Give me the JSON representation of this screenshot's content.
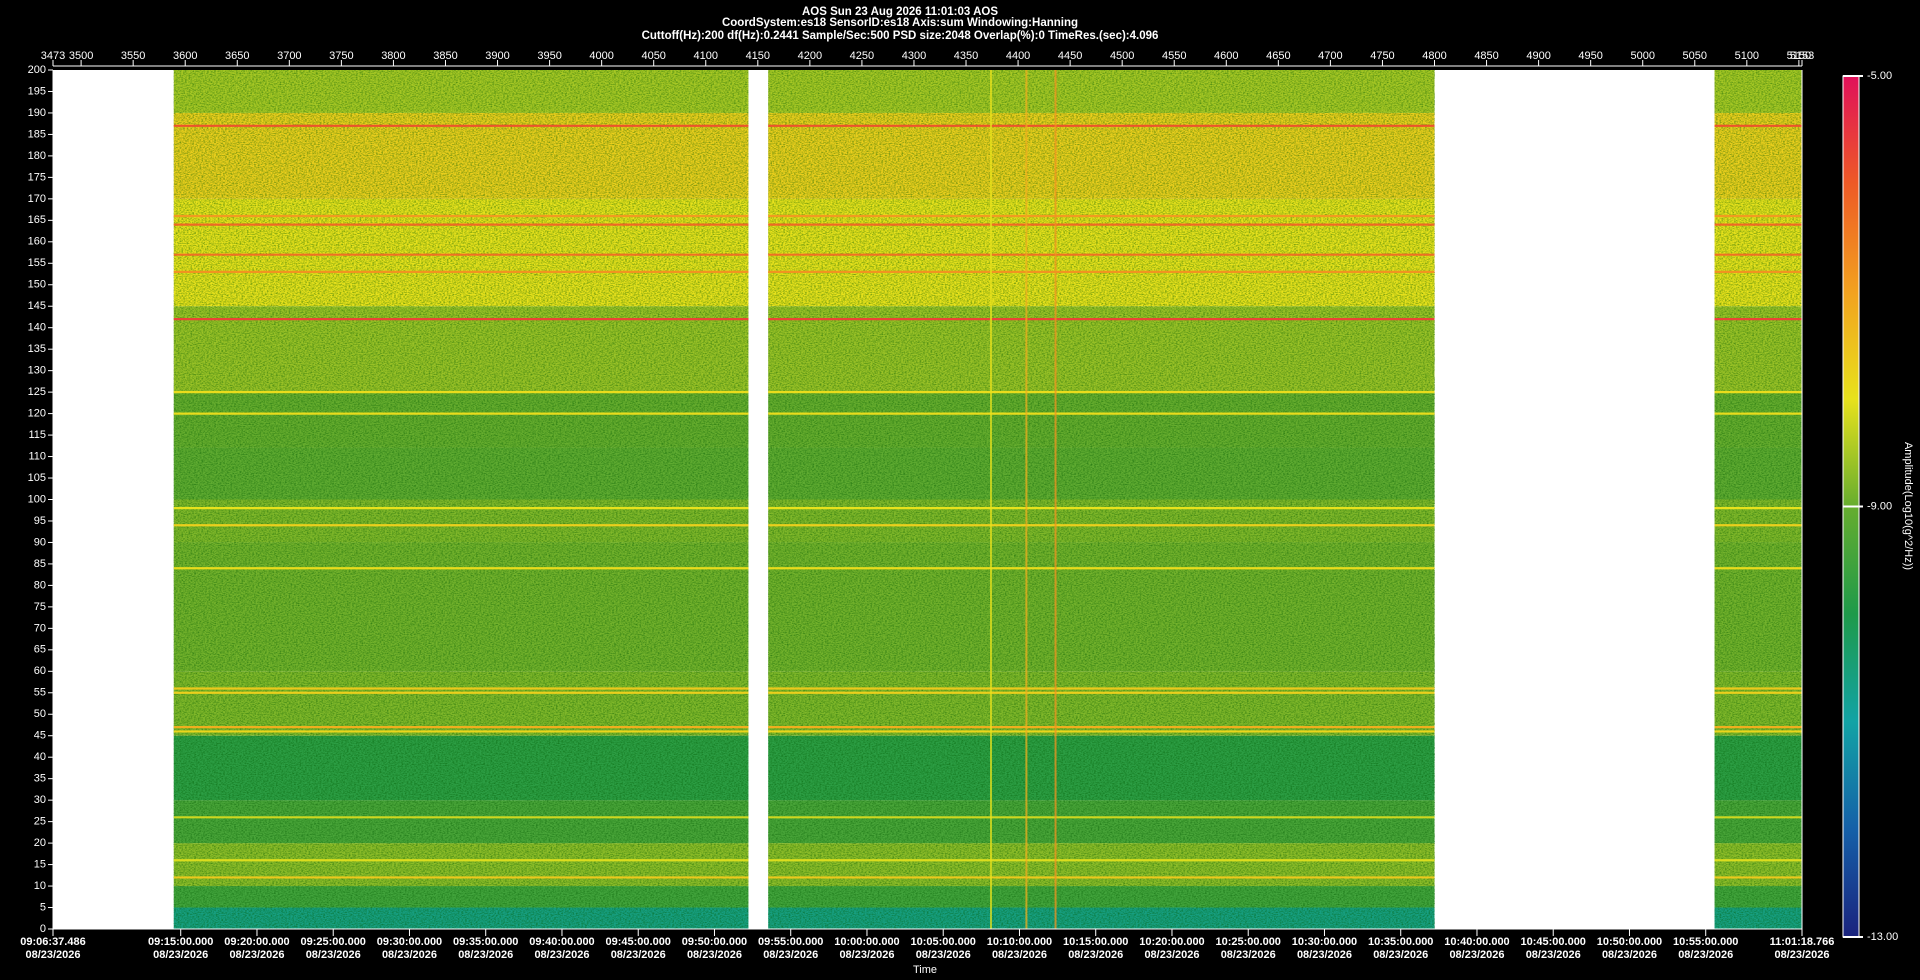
{
  "chart_data": {
    "type": "spectrogram",
    "title": "AOS  Sun 23 Aug 2026 11:01:03  AOS",
    "subtitle": [
      "CoordSystem:es18    SensorID:es18    Axis:sum    Windowing:Hanning",
      "Cuttoff(Hz):200      df(Hz):0.2441      Sample/Sec:500      PSD size:2048      Overlap(%):0      TimeRes.(sec):4.096"
    ],
    "xlabel": "Time",
    "colorbar_label": "Amplitude(Log10(g^2/Hz))",
    "xlim": [
      3473,
      5153
    ],
    "xticks": [
      3473,
      3500,
      3550,
      3600,
      3650,
      3700,
      3750,
      3800,
      3850,
      3900,
      3950,
      4000,
      4050,
      4100,
      4150,
      4200,
      4250,
      4300,
      4350,
      4400,
      4450,
      4500,
      4550,
      4600,
      4650,
      4700,
      4750,
      4800,
      4850,
      4900,
      4950,
      5000,
      5050,
      5100,
      5150,
      5153
    ],
    "time_ticks": [
      {
        "value": 3473,
        "label": "09:06:37.486\n08/23/2026"
      },
      {
        "value": 3595.68,
        "label": "09:15:00.000\n08/23/2026"
      },
      {
        "value": 3668.93,
        "label": "09:20:00.000\n08/23/2026"
      },
      {
        "value": 3742.17,
        "label": "09:25:00.000\n08/23/2026"
      },
      {
        "value": 3815.41,
        "label": "09:30:00.000\n08/23/2026"
      },
      {
        "value": 3888.65,
        "label": "09:35:00.000\n08/23/2026"
      },
      {
        "value": 3961.89,
        "label": "09:40:00.000\n08/23/2026"
      },
      {
        "value": 4035.14,
        "label": "09:45:00.000\n08/23/2026"
      },
      {
        "value": 4108.38,
        "label": "09:50:00.000\n08/23/2026"
      },
      {
        "value": 4181.62,
        "label": "09:55:00.000\n08/23/2026"
      },
      {
        "value": 4254.86,
        "label": "10:00:00.000\n08/23/2026"
      },
      {
        "value": 4328.1,
        "label": "10:05:00.000\n08/23/2026"
      },
      {
        "value": 4401.35,
        "label": "10:10:00.000\n08/23/2026"
      },
      {
        "value": 4474.59,
        "label": "10:15:00.000\n08/23/2026"
      },
      {
        "value": 4547.83,
        "label": "10:20:00.000\n08/23/2026"
      },
      {
        "value": 4621.07,
        "label": "10:25:00.000\n08/23/2026"
      },
      {
        "value": 4694.31,
        "label": "10:30:00.000\n08/23/2026"
      },
      {
        "value": 4767.56,
        "label": "10:35:00.000\n08/23/2026"
      },
      {
        "value": 4840.8,
        "label": "10:40:00.000\n08/23/2026"
      },
      {
        "value": 4914.04,
        "label": "10:45:00.000\n08/23/2026"
      },
      {
        "value": 4987.28,
        "label": "10:50:00.000\n08/23/2026"
      },
      {
        "value": 5060.52,
        "label": "10:55:00.000\n08/23/2026"
      },
      {
        "value": 5153,
        "label": "11:01:18.766\n08/23/2026"
      }
    ],
    "ylim": [
      0,
      200
    ],
    "yticks": [
      0,
      5,
      10,
      15,
      20,
      25,
      30,
      35,
      40,
      45,
      50,
      55,
      60,
      65,
      70,
      75,
      80,
      85,
      90,
      95,
      100,
      105,
      110,
      115,
      120,
      125,
      130,
      135,
      140,
      145,
      150,
      155,
      160,
      165,
      170,
      175,
      180,
      185,
      190,
      195,
      200
    ],
    "clim": [
      -13,
      -5
    ],
    "cticks": [
      {
        "value": -13,
        "label": "-13.00"
      },
      {
        "value": -9,
        "label": "-9.00"
      },
      {
        "value": -5,
        "label": "-5.00"
      }
    ],
    "colormap": [
      "#1a237e",
      "#1560a8",
      "#12a3a5",
      "#1e9a4a",
      "#66ad2e",
      "#e8e21c",
      "#f2a11f",
      "#ee5a26",
      "#e0105a"
    ],
    "segments": [
      [
        3589,
        4141
      ],
      [
        4160,
        4800
      ],
      [
        5069,
        5153
      ]
    ],
    "band_edges": [
      0,
      5,
      10,
      20,
      30,
      45,
      60,
      90,
      100,
      112,
      125,
      145,
      170,
      190,
      200
    ],
    "band_values": [
      -10.6,
      -9.5,
      -8.7,
      -9.4,
      -9.8,
      -8.8,
      -8.9,
      -8.8,
      -9.1,
      -9.0,
      -8.6,
      -8.0,
      -7.7,
      -8.5
    ],
    "lines": {
      "freq": [
        187,
        166,
        164,
        157,
        153,
        142,
        125,
        120,
        98,
        94,
        84,
        56,
        55,
        47,
        46,
        26,
        16,
        12
      ],
      "values": [
        -5.9,
        -6.9,
        -6.2,
        -6.3,
        -6.8,
        -5.7,
        -7.9,
        -7.9,
        -8.0,
        -7.7,
        -7.9,
        -7.6,
        -7.7,
        -7.2,
        -7.8,
        -8.2,
        -8.1,
        -7.6
      ]
    },
    "events": {
      "x": [
        4374,
        4408,
        4436
      ],
      "values": [
        -8.0,
        -7.2,
        -6.8
      ]
    }
  }
}
